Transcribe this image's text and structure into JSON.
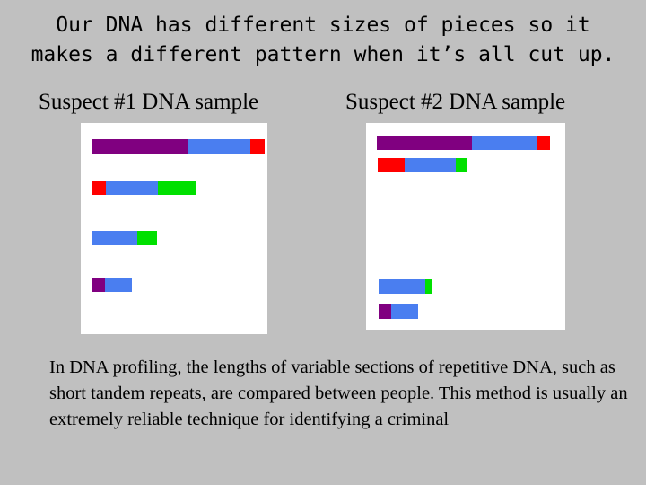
{
  "title": "Our DNA has different sizes of pieces so it\nmakes a different pattern when it’s all cut up.",
  "colors": {
    "purple": "#800080",
    "blue": "#4a7ef0",
    "red": "#ff0000",
    "green": "#00e000",
    "background": "#c0c0c0",
    "panel": "#ffffff"
  },
  "suspects": [
    {
      "label": "Suspect #1  DNA sample",
      "fragments": [
        [
          "purple",
          "blue",
          "red"
        ],
        [
          "red",
          "blue",
          "green"
        ],
        [
          "blue",
          "green"
        ],
        [
          "purple",
          "blue"
        ]
      ]
    },
    {
      "label": "Suspect #2  DNA sample",
      "fragments": [
        [
          "purple",
          "blue",
          "red"
        ],
        [
          "red",
          "blue",
          "green"
        ],
        [
          "blue",
          "green"
        ],
        [
          "purple",
          "blue"
        ]
      ]
    }
  ],
  "caption": "In DNA profiling, the lengths of variable sections of repetitive DNA, such as short tandem repeats, are compared between people. This method is usually an extremely reliable technique for identifying a criminal"
}
